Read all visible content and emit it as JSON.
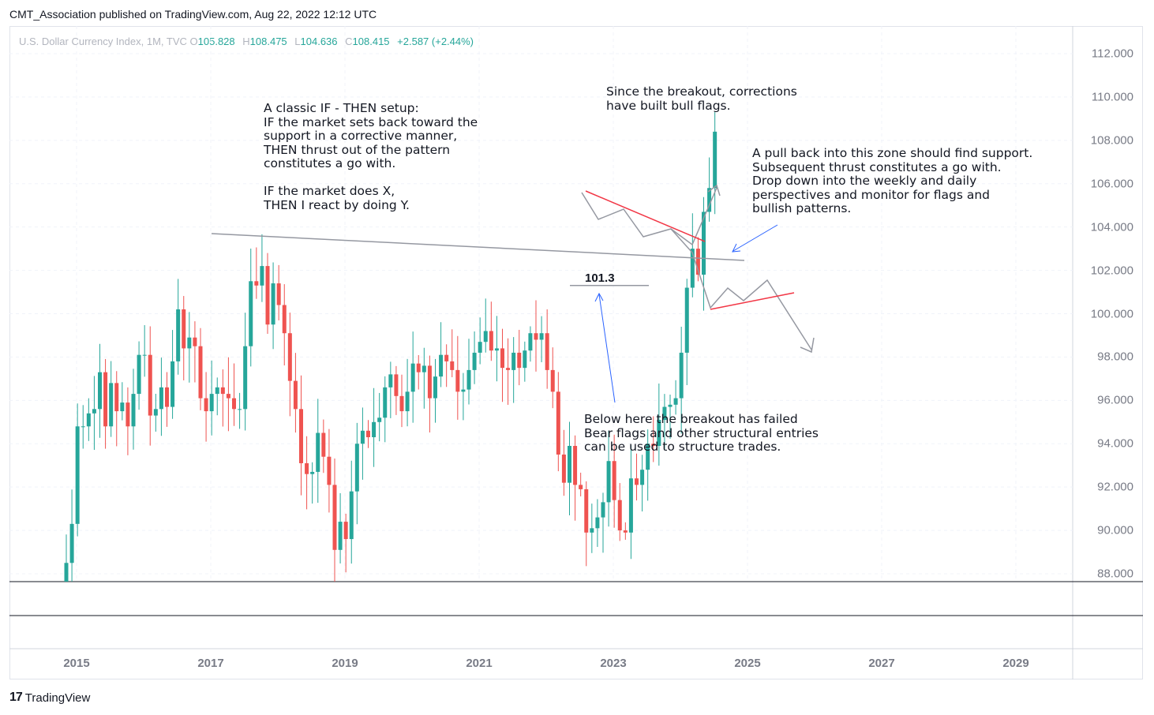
{
  "header": {
    "text": "CMT_Association published on TradingView.com, Aug 22, 2022 12:12 UTC"
  },
  "legend": {
    "symbol": "U.S. Dollar Currency Index, 1M, TVC",
    "open_label": "O",
    "open": "105.828",
    "high_label": "H",
    "high": "108.475",
    "low_label": "L",
    "low": "104.636",
    "close_label": "C",
    "close": "108.415",
    "change": "+2.587 (+2.44%)"
  },
  "annotations": {
    "setup": "A classic IF - THEN setup:\nIF the market sets back toward the\nsupport in a corrective manner,\nTHEN thrust out of the pattern\nconstitutes a go with.\n\nIF the market does X,\nTHEN I react by doing Y.",
    "bull_flags": "Since the breakout, corrections\nhave built bull flags.",
    "pullback": "A pull back into this zone should find support.\nSubsequent thrust constitutes a go with.\nDrop down into the weekly and daily\nperspectives and monitor for flags and\nbullish patterns.",
    "failure": "Below here the breakout has failed\nBear flags and other structural entries\ncan be used to structure trades.",
    "level_label": "101.3"
  },
  "colors": {
    "up": "#26a69a",
    "down": "#ef5350",
    "trendline": "#9598a1",
    "flag": "#f23645",
    "arrow": "#2962ff"
  },
  "chart_data": {
    "type": "candlestick",
    "y_ticks": [
      "88.000",
      "90.000",
      "92.000",
      "94.000",
      "96.000",
      "98.000",
      "100.000",
      "102.000",
      "104.000",
      "106.000",
      "108.000",
      "110.000",
      "112.000"
    ],
    "x_ticks": [
      "2015",
      "2017",
      "2019",
      "2021",
      "2023",
      "2025",
      "2027",
      "2029"
    ],
    "ylim": [
      87.7,
      113.0
    ],
    "xlim": [
      2014.0,
      2029.8
    ],
    "closes": [
      88.5,
      90.3,
      94.8,
      94.8,
      95.4,
      95.6,
      97.3,
      94.8,
      96.8,
      95.5,
      95.9,
      94.8,
      96.3,
      98.1,
      98.1,
      95.3,
      95.6,
      96.6,
      95.7,
      97.8,
      100.2,
      98.4,
      98.9,
      98.5,
      96.1,
      95.5,
      96.3,
      96.6,
      96.3,
      96.1,
      95.6,
      95.6,
      98.5,
      101.5,
      101.3,
      102.2,
      99.5,
      101.4,
      100.4,
      99.1,
      96.9,
      95.6,
      93.1,
      92.6,
      92.7,
      94.5,
      93.4,
      92.1,
      89.1,
      90.4,
      89.6,
      91.8,
      94.0,
      94.6,
      94.3,
      95.0,
      95.2,
      96.6,
      97.2,
      96.2,
      95.5,
      96.4,
      97.7,
      97.3,
      97.6,
      96.1,
      97.1,
      98.1,
      97.8,
      97.4,
      96.4,
      96.5,
      97.4,
      98.2,
      98.7,
      99.2,
      98.3,
      98.4,
      97.5,
      97.4,
      98.2,
      97.5,
      98.3,
      99.1,
      98.8,
      99.1,
      97.4,
      96.4,
      93.5,
      92.2,
      93.9,
      92.1,
      91.9,
      89.9,
      90.1,
      90.6,
      91.3,
      93.2,
      91.4,
      90.0,
      89.9,
      92.4,
      92.1,
      92.8,
      94.0,
      93.9,
      95.1,
      95.7,
      95.8,
      96.1,
      98.2,
      101.2,
      103.0,
      101.8,
      104.7,
      105.8,
      108.4
    ],
    "summary": {
      "start_close": 88.5,
      "2016_high": 103.8,
      "2020_high": 103.0,
      "2021_low": 89.2,
      "current_close": 108.415,
      "current_high": 108.475,
      "current_low": 104.636,
      "current_open": 105.828
    },
    "horizontal_line": 101.3
  }
}
